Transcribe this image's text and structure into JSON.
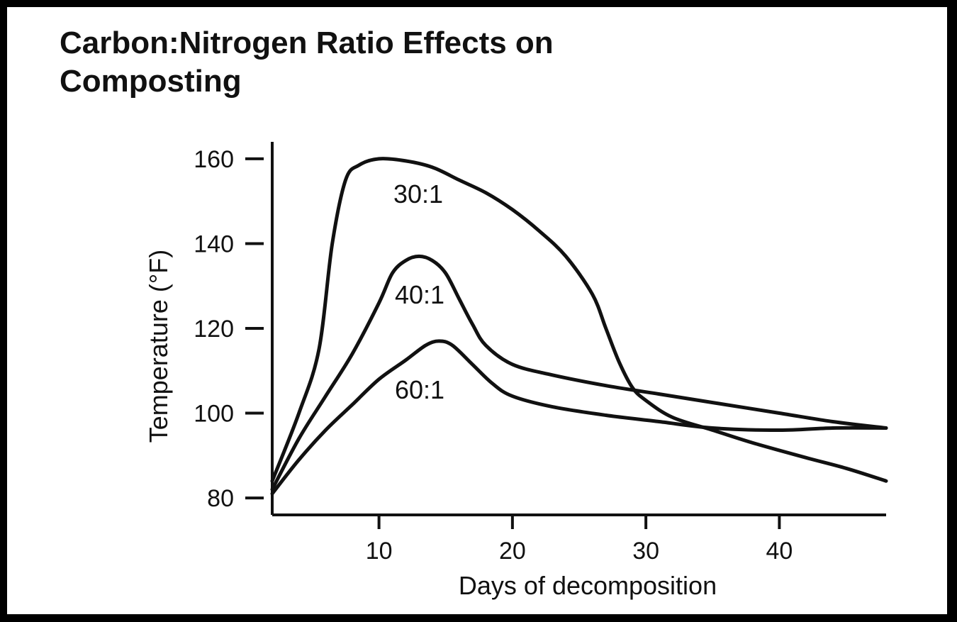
{
  "chart_data": {
    "type": "line",
    "title_lines": [
      "Carbon:Nitrogen Ratio Effects on",
      "Composting"
    ],
    "xlabel": "Days of decomposition",
    "ylabel": "Temperature (°F)",
    "xlim": [
      2,
      48
    ],
    "ylim": [
      76,
      164
    ],
    "xticks": [
      10,
      20,
      30,
      40
    ],
    "yticks": [
      80,
      100,
      120,
      140,
      160
    ],
    "colors": {
      "line": "#111111",
      "background": "#ffffff",
      "border": "#000000"
    },
    "series": [
      {
        "name": "30:1",
        "points": [
          [
            2,
            84
          ],
          [
            4,
            100
          ],
          [
            5.5,
            115
          ],
          [
            6.5,
            140
          ],
          [
            7.5,
            155
          ],
          [
            8.5,
            158.5
          ],
          [
            10,
            160
          ],
          [
            12,
            159.5
          ],
          [
            14,
            158
          ],
          [
            16,
            155
          ],
          [
            18,
            152
          ],
          [
            20,
            148
          ],
          [
            22,
            143
          ],
          [
            24,
            137
          ],
          [
            26,
            128
          ],
          [
            27,
            120
          ],
          [
            28,
            112
          ],
          [
            29,
            106
          ],
          [
            30,
            103
          ],
          [
            32,
            99
          ],
          [
            35,
            96
          ],
          [
            38,
            93
          ],
          [
            42,
            89.5
          ],
          [
            45,
            87
          ],
          [
            48,
            84
          ]
        ]
      },
      {
        "name": "40:1",
        "points": [
          [
            2,
            82
          ],
          [
            4,
            94
          ],
          [
            6,
            104
          ],
          [
            8,
            114
          ],
          [
            10,
            126
          ],
          [
            11,
            133
          ],
          [
            12,
            136
          ],
          [
            13,
            137
          ],
          [
            14,
            136
          ],
          [
            15,
            133
          ],
          [
            16,
            127
          ],
          [
            17,
            121
          ],
          [
            18,
            116
          ],
          [
            20,
            111.5
          ],
          [
            23,
            109
          ],
          [
            27,
            106.5
          ],
          [
            31,
            104.5
          ],
          [
            35,
            102.5
          ],
          [
            40,
            100
          ],
          [
            44,
            98
          ],
          [
            48,
            96.5
          ]
        ]
      },
      {
        "name": "60:1",
        "points": [
          [
            2,
            81
          ],
          [
            4,
            89
          ],
          [
            6,
            96
          ],
          [
            8,
            102
          ],
          [
            10,
            108
          ],
          [
            12,
            112.5
          ],
          [
            13.5,
            116
          ],
          [
            14.5,
            117
          ],
          [
            15.5,
            116
          ],
          [
            17,
            111.5
          ],
          [
            18.5,
            107
          ],
          [
            20,
            104
          ],
          [
            23,
            101.5
          ],
          [
            27,
            99.5
          ],
          [
            31,
            98
          ],
          [
            35,
            96.5
          ],
          [
            40,
            96
          ],
          [
            44,
            96.5
          ],
          [
            48,
            96.5
          ]
        ]
      }
    ]
  }
}
